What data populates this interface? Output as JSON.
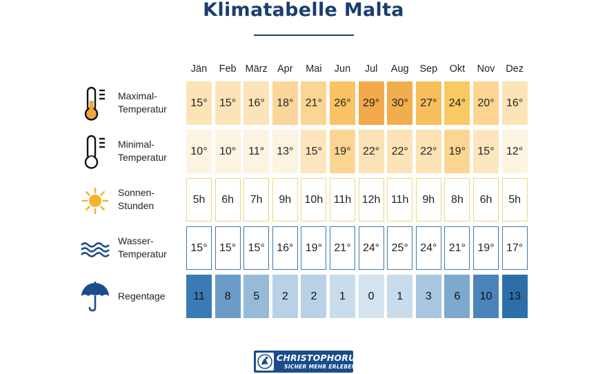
{
  "title": "Klimatabelle Malta",
  "chart_data": {
    "type": "table",
    "title": "Klimatabelle Malta",
    "months": [
      "Jän",
      "Feb",
      "März",
      "Apr",
      "Mai",
      "Jun",
      "Jul",
      "Aug",
      "Sep",
      "Okt",
      "Nov",
      "Dez"
    ],
    "rows": [
      {
        "key": "max-temp",
        "label_lines": [
          "Maximal-",
          "Temperatur"
        ],
        "icon": "thermometer-high-icon",
        "values": [
          15,
          15,
          16,
          18,
          21,
          26,
          29,
          30,
          27,
          24,
          20,
          16
        ],
        "display": [
          "15°",
          "15°",
          "16°",
          "18°",
          "21°",
          "26°",
          "29°",
          "30°",
          "27°",
          "24°",
          "20°",
          "16°"
        ],
        "colors": [
          "#fce4b8",
          "#fce4b8",
          "#fce4b8",
          "#fbd69a",
          "#fbd593",
          "#f9c364",
          "#f1a949",
          "#f2ad4d",
          "#f7bf5c",
          "#f9c964",
          "#fcd592",
          "#fce4b8"
        ]
      },
      {
        "key": "min-temp",
        "label_lines": [
          "Minimal-",
          "Temperatur"
        ],
        "icon": "thermometer-low-icon",
        "values": [
          10,
          10,
          11,
          13,
          15,
          19,
          22,
          22,
          22,
          19,
          15,
          12
        ],
        "display": [
          "10°",
          "10°",
          "11°",
          "13°",
          "15°",
          "19°",
          "22°",
          "22°",
          "22°",
          "19°",
          "15°",
          "12°"
        ],
        "colors": [
          "#fdf3e1",
          "#fdf3e1",
          "#fdf3e1",
          "#fdf3e1",
          "#fde5bd",
          "#fbd591",
          "#fbe2b5",
          "#fce3b6",
          "#fce3b6",
          "#fbd591",
          "#fde5bd",
          "#fdf3e1"
        ]
      },
      {
        "key": "sun-hours",
        "label_lines": [
          "Sonnen-",
          "Stunden"
        ],
        "icon": "sun-icon",
        "values": [
          5,
          6,
          7,
          9,
          10,
          11,
          12,
          11,
          9,
          8,
          6,
          5
        ],
        "display": [
          "5h",
          "6h",
          "7h",
          "9h",
          "10h",
          "11h",
          "12h",
          "11h",
          "9h",
          "8h",
          "6h",
          "5h"
        ],
        "colors": [
          "#f3d27e"
        ]
      },
      {
        "key": "water-temp",
        "label_lines": [
          "Wasser-",
          "Temperatur"
        ],
        "icon": "waves-icon",
        "values": [
          15,
          15,
          15,
          16,
          19,
          21,
          24,
          25,
          24,
          21,
          19,
          17
        ],
        "display": [
          "15°",
          "15°",
          "15°",
          "16°",
          "19°",
          "21°",
          "24°",
          "25°",
          "24°",
          "21°",
          "19°",
          "17°"
        ],
        "colors": [
          "#3f77a8"
        ]
      },
      {
        "key": "rain-days",
        "label_lines": [
          "Regentage"
        ],
        "icon": "umbrella-icon",
        "values": [
          11,
          8,
          5,
          2,
          2,
          1,
          0,
          1,
          3,
          6,
          10,
          13
        ],
        "display": [
          "11",
          "8",
          "5",
          "2",
          "2",
          "1",
          "0",
          "1",
          "3",
          "6",
          "10",
          "13"
        ],
        "colors": [
          "#3b7bb5",
          "#6b9cc7",
          "#96bbd9",
          "#b8d1e6",
          "#b8d1e6",
          "#c9dceb",
          "#d3e3ef",
          "#c9dceb",
          "#a9c7e0",
          "#7ea9cf",
          "#4a84bb",
          "#2d6ea9"
        ]
      }
    ]
  },
  "colors": {
    "title": "#1b3f6e",
    "icon": "#1b4c8c",
    "thermometer": "#f0a53a",
    "sun": "#f4b32c",
    "logo_bg": "#1b4c8c"
  },
  "logo": {
    "name": "CHRISTOPHORUS",
    "slogan": "SICHER MEHR ERLEBEN",
    "icon": "christophorus-logo-icon"
  }
}
